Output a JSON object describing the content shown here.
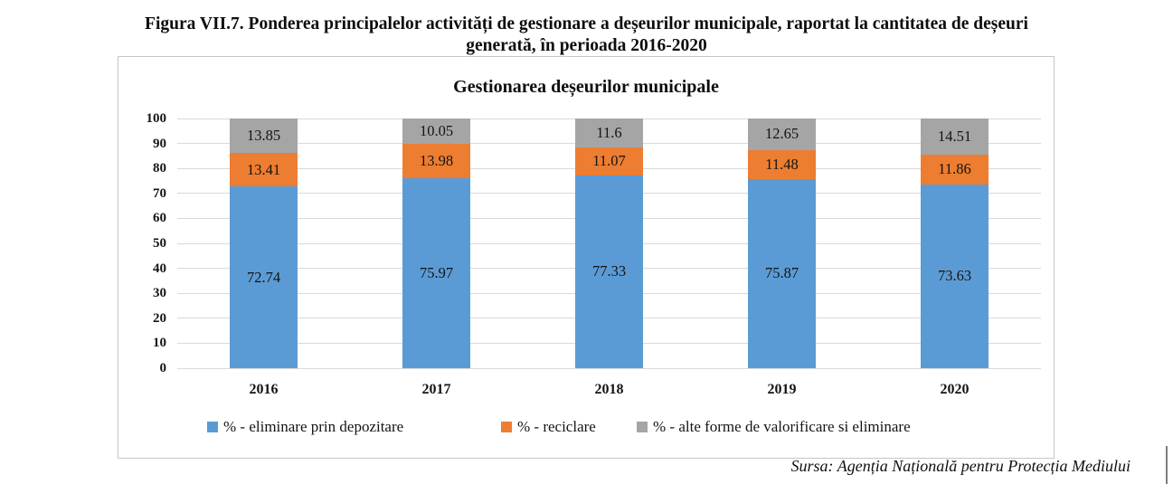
{
  "figure": {
    "caption_line1": "Figura VII.7. Ponderea principalelor activități de gestionare a deșeurilor municipale, raportat la cantitatea de deșeuri",
    "caption_line2": "generată, în perioada 2016-2020",
    "source": "Sursa: Agenția Națională pentru Protecția Mediului"
  },
  "chart_data": {
    "type": "bar",
    "stacked": true,
    "title": "Gestionarea deșeurilor municipale",
    "categories": [
      "2016",
      "2017",
      "2018",
      "2019",
      "2020"
    ],
    "series": [
      {
        "name": "% - eliminare prin depozitare",
        "color": "#5B9BD5",
        "values": [
          72.74,
          75.97,
          77.33,
          75.87,
          73.63
        ]
      },
      {
        "name": "% - reciclare",
        "color": "#ED7D31",
        "values": [
          13.41,
          13.98,
          11.07,
          11.48,
          11.86
        ]
      },
      {
        "name": "% - alte forme de valorificare si eliminare",
        "color": "#A5A5A5",
        "values": [
          13.85,
          10.05,
          11.6,
          12.65,
          14.51
        ]
      }
    ],
    "ylim": [
      0,
      100
    ],
    "yticks": [
      0,
      10,
      20,
      30,
      40,
      50,
      60,
      70,
      80,
      90,
      100
    ],
    "grid": true,
    "legend_position": "bottom",
    "gridline_color": "#d9d9d9",
    "border_color": "#c6c6c6"
  }
}
